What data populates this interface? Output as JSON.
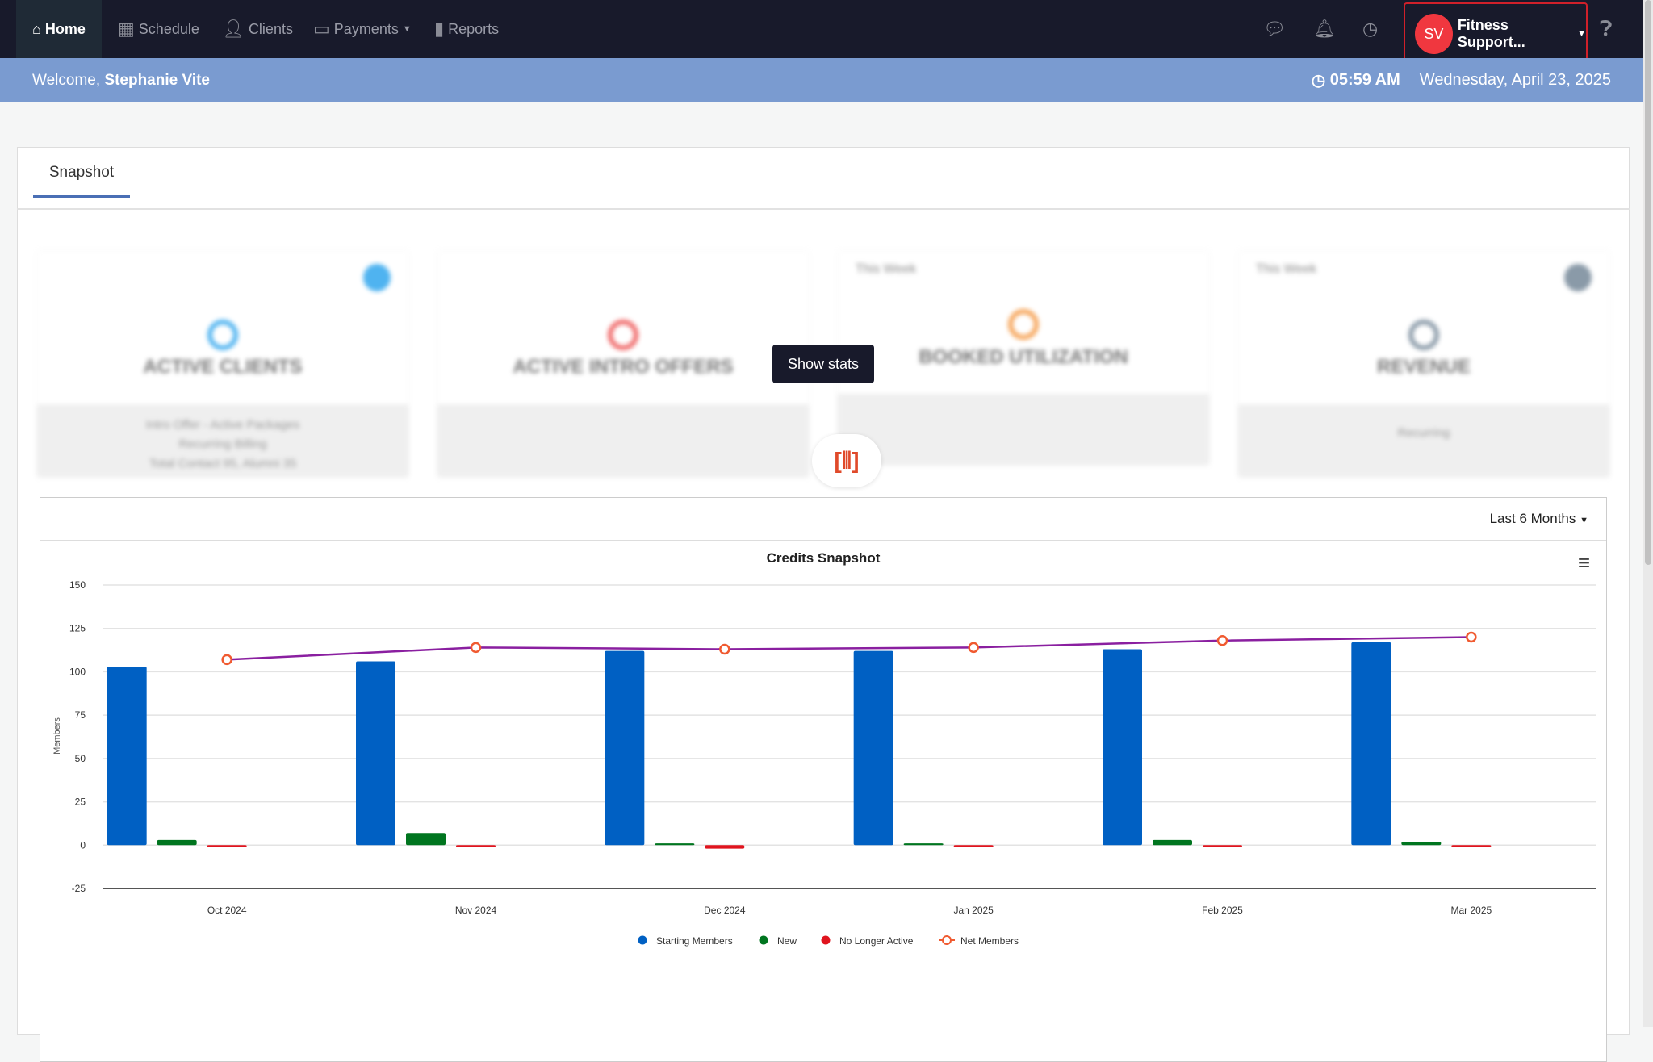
{
  "nav": {
    "items": [
      {
        "label": "Home",
        "icon": "home-icon"
      },
      {
        "label": "Schedule",
        "icon": "calendar-icon"
      },
      {
        "label": "Clients",
        "icon": "user-icon"
      },
      {
        "label": "Payments",
        "icon": "credit-card-icon"
      },
      {
        "label": "Reports",
        "icon": "bar-chart-icon"
      }
    ],
    "user_initials": "SV",
    "user_name": "Fitness Support..."
  },
  "welcome": {
    "prefix": "Welcome,",
    "name": "Stephanie Vite",
    "time": "05:59 AM",
    "date": "Wednesday, April 23, 2025"
  },
  "tabs": [
    {
      "label": "Snapshot"
    }
  ],
  "stats": {
    "show_stats_label": "Show stats",
    "cards": [
      {
        "title": "ACTIVE CLIENTS",
        "footer": [
          "Intro Offer - Active Packages",
          "Recurring Billing",
          "Total Contact 95, Alumni 35"
        ],
        "color": "#4fb3f0"
      },
      {
        "title": "ACTIVE INTRO OFFERS",
        "footer": [],
        "color": "#f06a6a"
      },
      {
        "title": "BOOKED UTILIZATION",
        "period": "This Week",
        "footer": [],
        "color": "#f6a55a"
      },
      {
        "title": "REVENUE",
        "period": "This Week",
        "footer": [
          "Recurring"
        ],
        "color": "#8a9aa8"
      }
    ]
  },
  "chart_filter": "Last 6 Months",
  "chart_data": {
    "type": "bar",
    "title": "Credits Snapshot",
    "ylabel": "Members",
    "xlabel": "",
    "categories": [
      "Oct 2024",
      "Nov 2024",
      "Dec 2024",
      "Jan 2025",
      "Feb 2025",
      "Mar 2025"
    ],
    "ylim": [
      -25,
      150
    ],
    "yticks": [
      150,
      125,
      100,
      75,
      50,
      25,
      0,
      -25
    ],
    "series": [
      {
        "name": "Starting Members",
        "type": "bar",
        "color": "#0060c3",
        "values": [
          103,
          106,
          112,
          112,
          113,
          117
        ]
      },
      {
        "name": "New",
        "type": "bar",
        "color": "#00751f",
        "values": [
          3,
          7,
          1,
          1,
          3,
          2
        ]
      },
      {
        "name": "No Longer Active",
        "type": "bar",
        "color": "#e0141e",
        "values": [
          -1,
          -1,
          -2,
          -1,
          0,
          -1
        ]
      },
      {
        "name": "Net Members",
        "type": "line",
        "color": "#8a1fa0",
        "marker_color": "#f05a30",
        "values": [
          107,
          114,
          113,
          114,
          118,
          120
        ]
      }
    ],
    "legend": "bottom",
    "grid": true
  }
}
